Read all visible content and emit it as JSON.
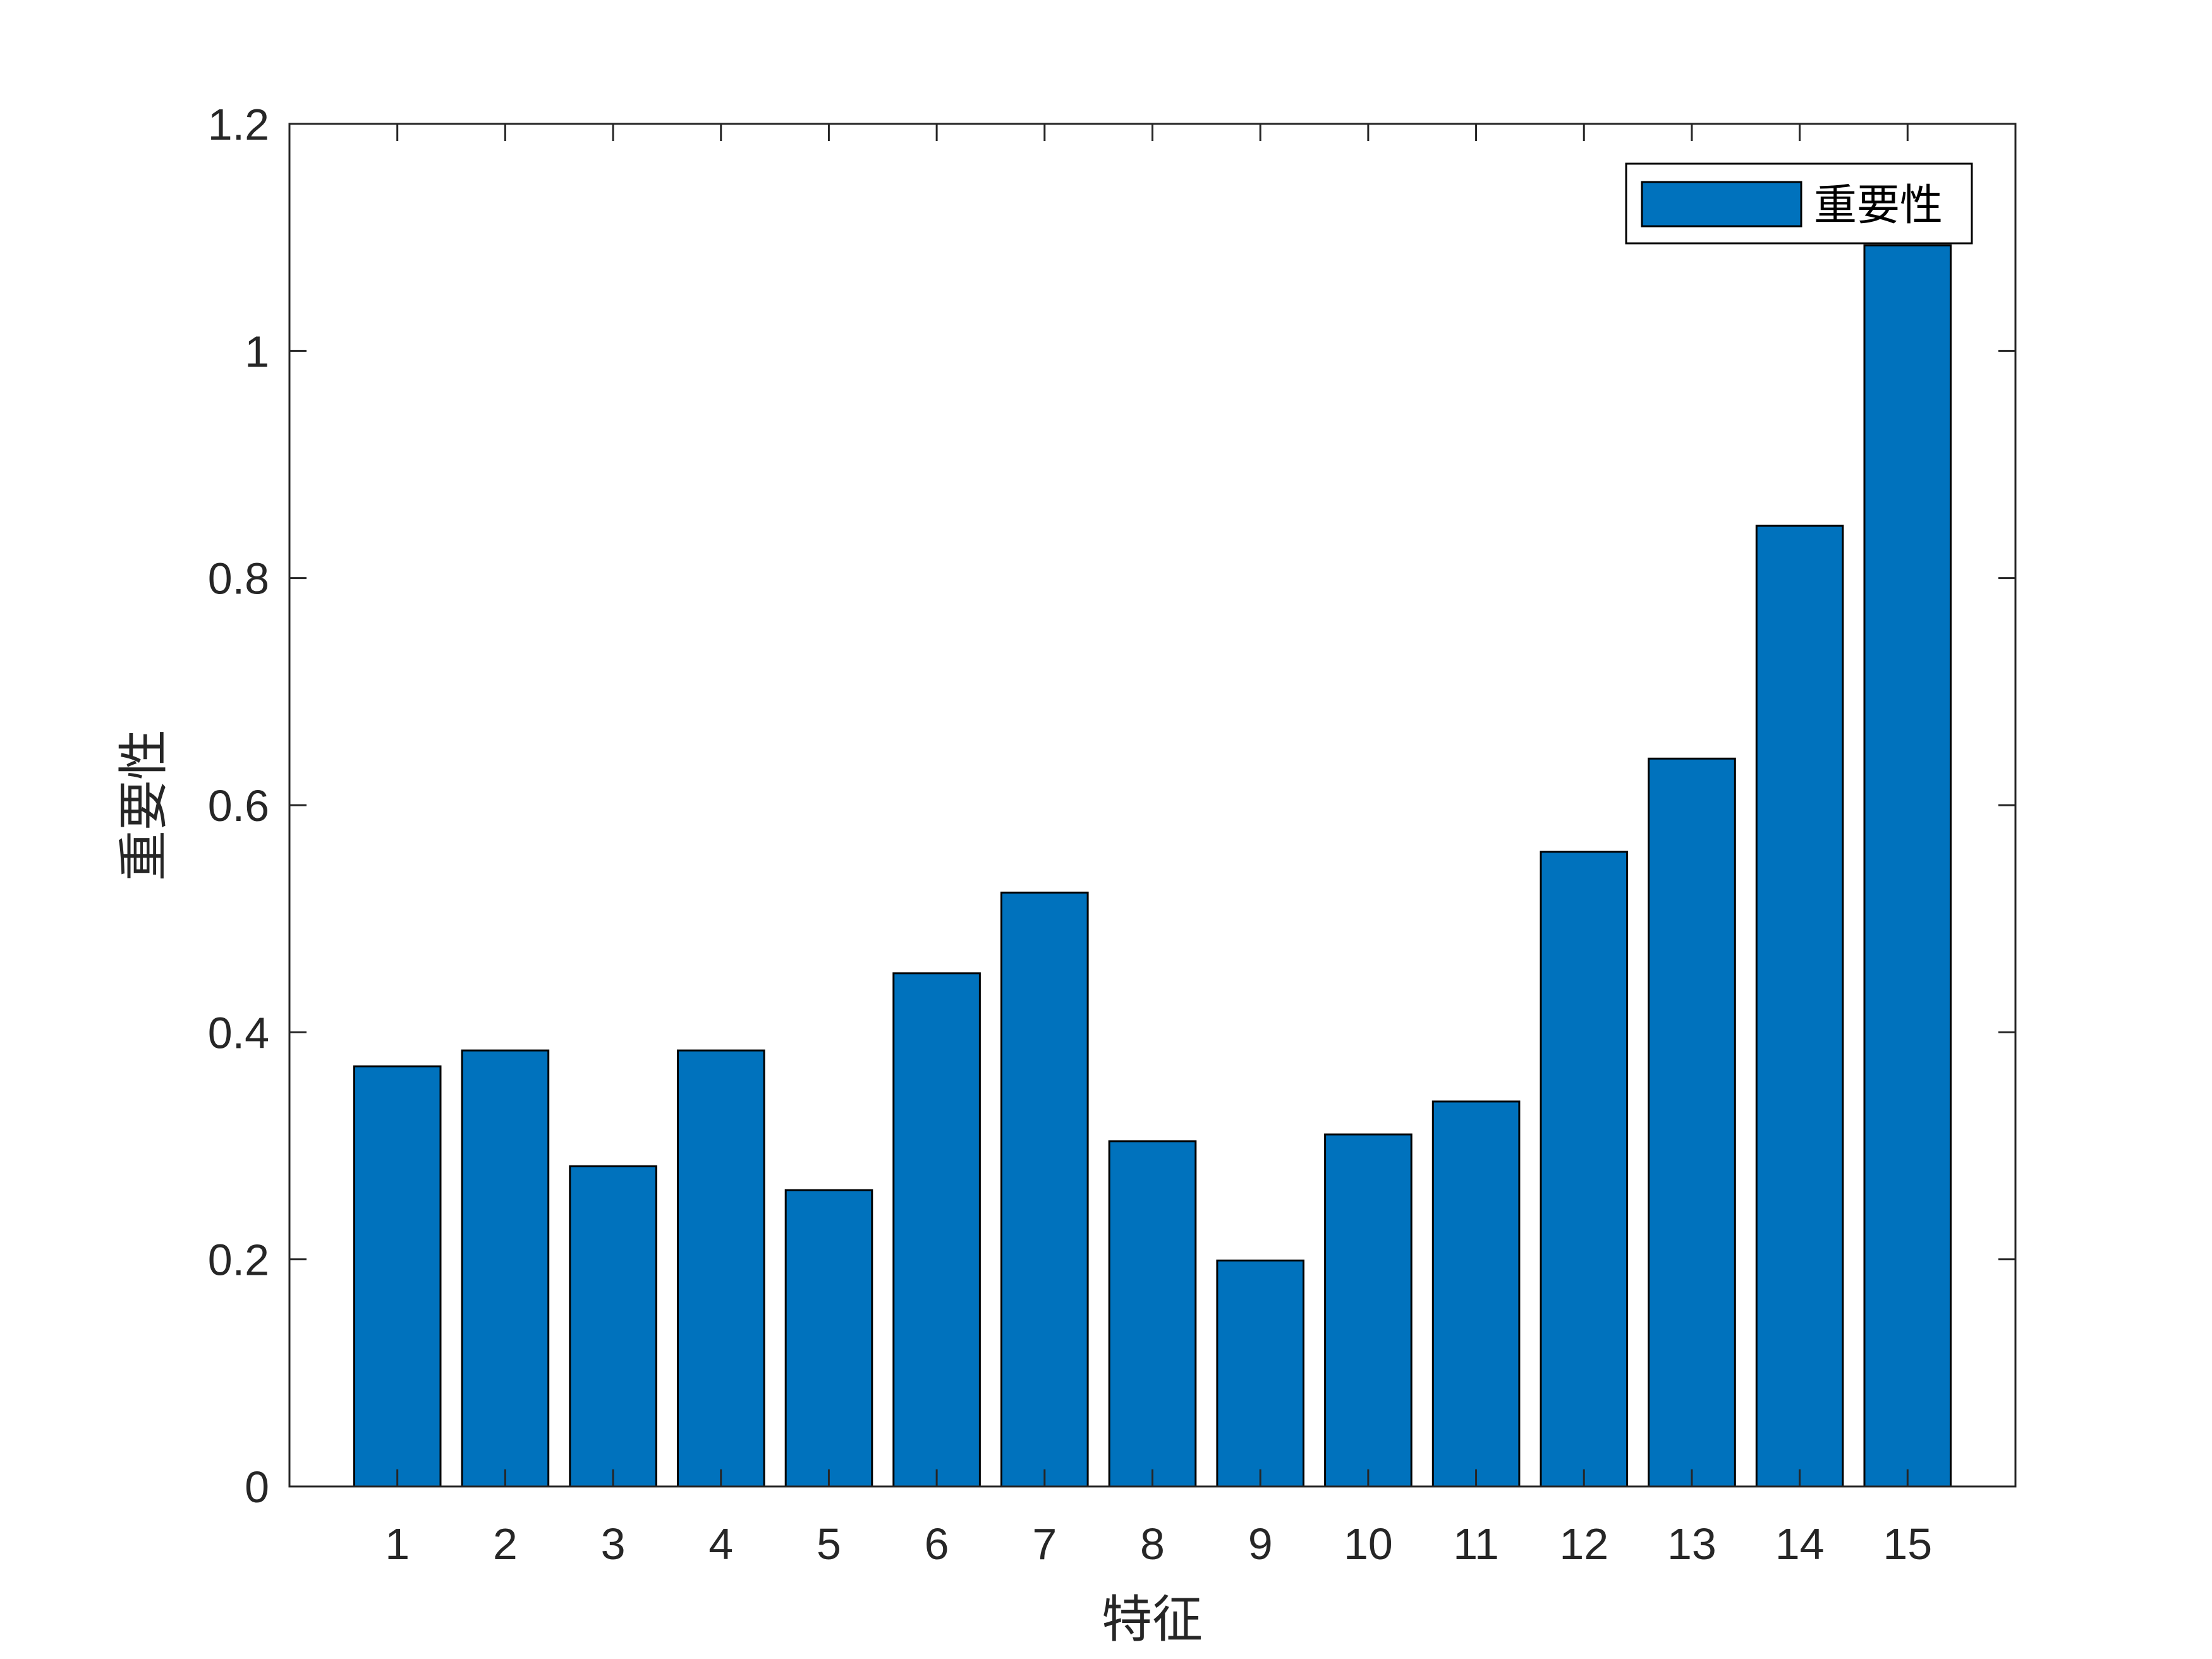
{
  "chart_data": {
    "type": "bar",
    "title": "",
    "xlabel": "特征",
    "ylabel": "重要性",
    "categories": [
      "1",
      "2",
      "3",
      "4",
      "5",
      "6",
      "7",
      "8",
      "9",
      "10",
      "11",
      "12",
      "13",
      "14",
      "15"
    ],
    "series": [
      {
        "name": "重要性",
        "values": [
          0.37,
          0.384,
          0.282,
          0.384,
          0.261,
          0.452,
          0.523,
          0.304,
          0.199,
          0.31,
          0.339,
          0.559,
          0.641,
          0.846,
          1.093
        ]
      }
    ],
    "ylim": [
      0,
      1.2
    ],
    "yticks": [
      "0",
      "0.2",
      "0.4",
      "0.6",
      "0.8",
      "1",
      "1.2"
    ],
    "ytick_values": [
      0,
      0.2,
      0.4,
      0.6,
      0.8,
      1.0,
      1.2
    ],
    "grid": false,
    "legend_position": "top-right",
    "colors": {
      "bar": "#0072BD",
      "edge": "#000000",
      "axis": "#262626"
    }
  }
}
